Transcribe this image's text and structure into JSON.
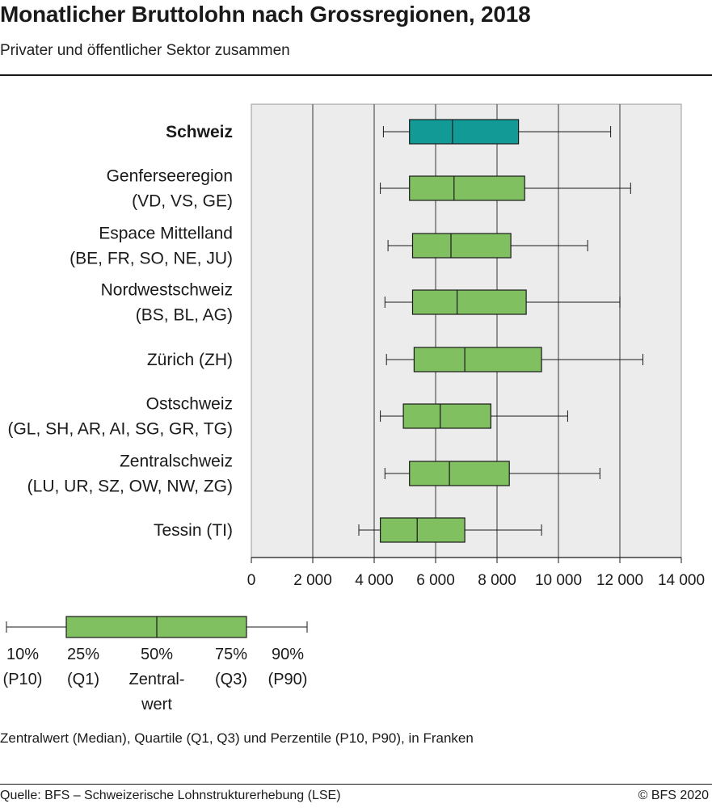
{
  "chart_data": {
    "type": "box",
    "title": "Monatlicher Bruttolohn nach Grossregionen, 2018",
    "subtitle": "Privater und öffentlicher Sektor zusammen",
    "xlim": [
      0,
      14000
    ],
    "x_ticks": [
      0,
      2000,
      4000,
      6000,
      8000,
      10000,
      12000,
      14000
    ],
    "x_tick_labels": [
      "0",
      "2 000",
      "4 000",
      "6 000",
      "8 000",
      "10 000",
      "12 000",
      "14 000"
    ],
    "grid": "vertical",
    "regions": [
      {
        "label": [
          "Schweiz"
        ],
        "bold": true,
        "p10": 4300,
        "q1": 5150,
        "median": 6550,
        "q3": 8700,
        "p90": 11700
      },
      {
        "label": [
          "Genferseeregion",
          "(VD, VS, GE)"
        ],
        "bold": false,
        "p10": 4200,
        "q1": 5150,
        "median": 6600,
        "q3": 8900,
        "p90": 12350
      },
      {
        "label": [
          "Espace Mittelland",
          "(BE, FR, SO, NE, JU)"
        ],
        "bold": false,
        "p10": 4450,
        "q1": 5250,
        "median": 6500,
        "q3": 8450,
        "p90": 10950
      },
      {
        "label": [
          "Nordwestschweiz",
          "(BS, BL, AG)"
        ],
        "bold": false,
        "p10": 4350,
        "q1": 5250,
        "median": 6700,
        "q3": 8950,
        "p90": 12000
      },
      {
        "label": [
          "Zürich (ZH)"
        ],
        "bold": false,
        "p10": 4400,
        "q1": 5300,
        "median": 6950,
        "q3": 9450,
        "p90": 12750
      },
      {
        "label": [
          "Ostschweiz",
          "(GL, SH, AR, AI, SG, GR, TG)"
        ],
        "bold": false,
        "p10": 4200,
        "q1": 4950,
        "median": 6150,
        "q3": 7800,
        "p90": 10300
      },
      {
        "label": [
          "Zentralschweiz",
          "(LU, UR, SZ, OW, NW, ZG)"
        ],
        "bold": false,
        "p10": 4350,
        "q1": 5150,
        "median": 6450,
        "q3": 8400,
        "p90": 11350
      },
      {
        "label": [
          "Tessin (TI)"
        ],
        "bold": false,
        "p10": 3500,
        "q1": 4200,
        "median": 5400,
        "q3": 6950,
        "p90": 9450
      }
    ],
    "colors": {
      "highlight": "#129b96",
      "box": "#80c060",
      "grid": "#555555",
      "plot_bg": "#ececec",
      "stroke": "#1a1a1a"
    },
    "legend": {
      "items": [
        [
          "10%",
          "(P10)"
        ],
        [
          "25%",
          "(Q1)"
        ],
        [
          "50%",
          "Zentral-",
          "wert"
        ],
        [
          "75%",
          "(Q3)"
        ],
        [
          "90%",
          "(P90)"
        ]
      ]
    }
  },
  "note": "Zentralwert (Median), Quartile (Q1, Q3) und Perzentile (P10, P90), in Franken",
  "source": "Quelle: BFS – Schweizerische Lohnstrukturerhebung (LSE)",
  "copyright": "© BFS 2020"
}
